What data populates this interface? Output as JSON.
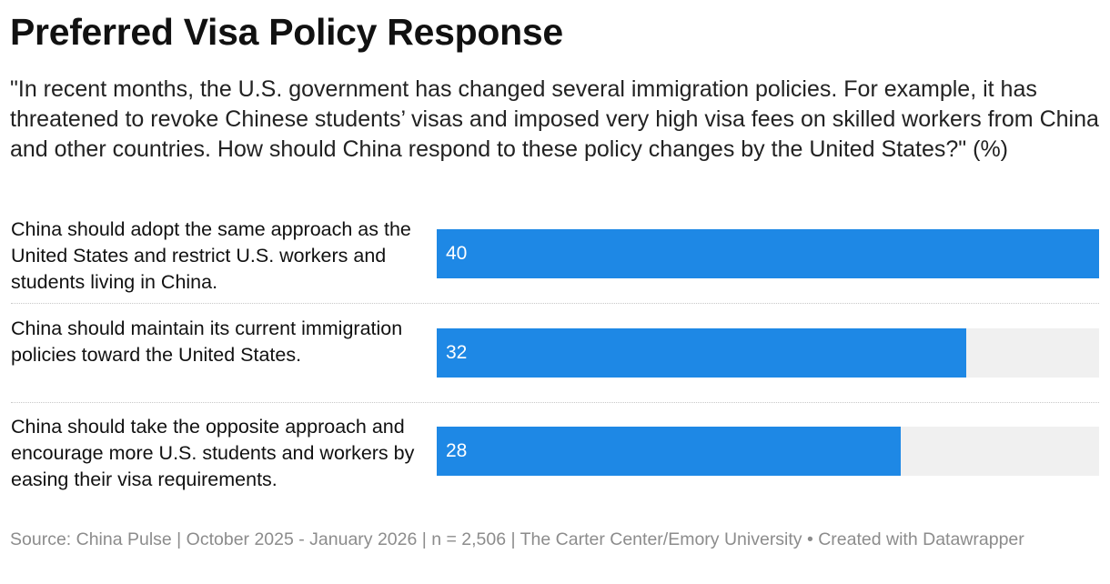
{
  "chart_data": {
    "type": "bar",
    "orientation": "horizontal",
    "title": "Preferred Visa Policy Response",
    "subtitle": "\"In recent months, the U.S. government has changed several immigration policies. For example, it has threatened to revoke Chinese students’ visas and imposed very high visa fees on skilled workers from China and other countries. How should China respond to these policy changes by the United States?\" (%)",
    "categories": [
      "China should adopt the same approach as the United States and restrict U.S. workers and students living in China.",
      "China should maintain its current immigration policies toward the United States.",
      "China should take the opposite approach and encourage more U.S. students and workers by easing their visa requirements."
    ],
    "values": [
      40,
      32,
      28
    ],
    "value_labels": [
      "40",
      "32",
      "28"
    ],
    "xlim": [
      0,
      40
    ],
    "bar_color": "#1e88e5",
    "track_color": "#f0f0f0",
    "source": "Source: China Pulse | October 2025 - January 2026 | n = 2,506 | The Carter Center/Emory University • Created with Datawrapper"
  }
}
